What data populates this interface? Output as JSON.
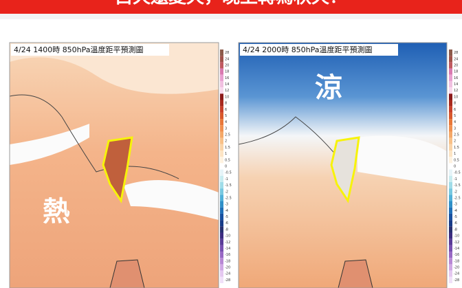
{
  "header": {
    "title": "白天還夏天，晚上轉為秋天！"
  },
  "panels": [
    {
      "title": "4/24 1400時 850hPa溫度距平預測圖",
      "label": "熱"
    },
    {
      "title": "4/24 2000時 850hPa溫度距平預測圖",
      "label": "涼"
    }
  ],
  "colorbar": {
    "labels": [
      28,
      24,
      20,
      18,
      16,
      14,
      12,
      10,
      8,
      6,
      5,
      4,
      3,
      2.5,
      2,
      1.5,
      1,
      0.5,
      0,
      -0.5,
      -1,
      -1.5,
      -2,
      -2.5,
      -3,
      -4,
      -5,
      -6,
      -8,
      -10,
      -12,
      -14,
      -16,
      -18,
      -20,
      -24,
      -28
    ]
  }
}
